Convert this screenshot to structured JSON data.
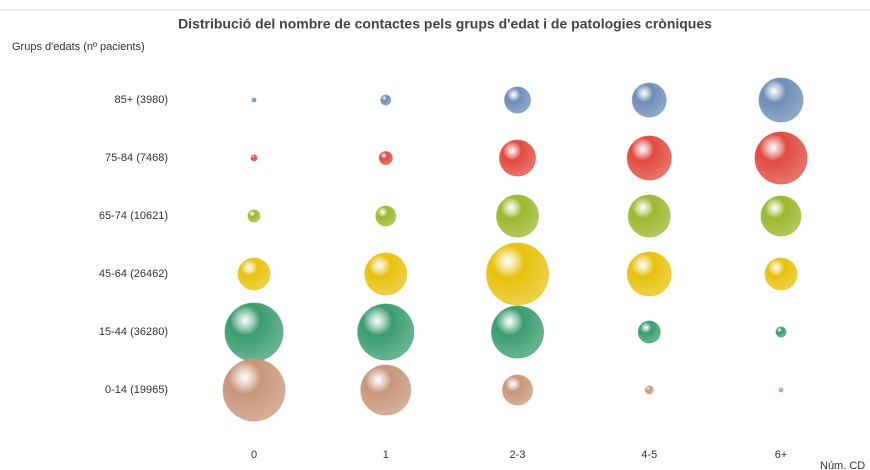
{
  "chart_data": {
    "type": "bubble",
    "title": "Distribució del nombre de contactes pels grups d'edat i de patologies cròniques",
    "y_label": "Grups d'edats (nº pacients)",
    "x_label": "Núm. CD",
    "categories": [
      "0",
      "1",
      "2-3",
      "4-5",
      "6+"
    ],
    "series": [
      {
        "name": "85+ (3980)",
        "color": "#6f8db5",
        "values": [
          16,
          100,
          676,
          1156,
          1936
        ]
      },
      {
        "name": "75-84 (7468)",
        "color": "#e04a40",
        "values": [
          36,
          169,
          1296,
          1936,
          2704
        ]
      },
      {
        "name": "65-74 (10621)",
        "color": "#9ab82e",
        "values": [
          144,
          400,
          1764,
          1764,
          1600
        ]
      },
      {
        "name": "45-64 (26462)",
        "color": "#e8c10e",
        "values": [
          1024,
          1764,
          3844,
          1936,
          1024
        ]
      },
      {
        "name": "15-44 (36280)",
        "color": "#3a9d70",
        "values": [
          3364,
          3136,
          2704,
          484,
          100
        ]
      },
      {
        "name": "0-14 (19965)",
        "color": "#c8967a",
        "values": [
          3844,
          2500,
          900,
          64,
          16
        ]
      }
    ]
  }
}
